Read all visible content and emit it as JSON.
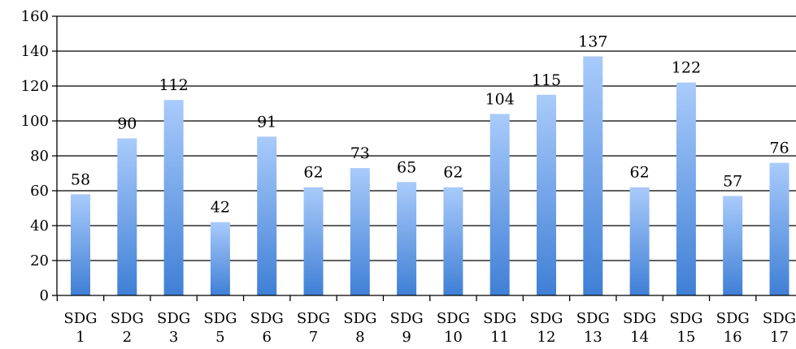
{
  "chart_data": {
    "type": "bar",
    "categories": [
      [
        "SDG",
        "1"
      ],
      [
        "SDG",
        "2"
      ],
      [
        "SDG",
        "3"
      ],
      [
        "SDG",
        "5"
      ],
      [
        "SDG",
        "6"
      ],
      [
        "SDG",
        "7"
      ],
      [
        "SDG",
        "8"
      ],
      [
        "SDG",
        "9"
      ],
      [
        "SDG",
        "10"
      ],
      [
        "SDG",
        "11"
      ],
      [
        "SDG",
        "12"
      ],
      [
        "SDG",
        "13"
      ],
      [
        "SDG",
        "14"
      ],
      [
        "SDG",
        "15"
      ],
      [
        "SDG",
        "16"
      ],
      [
        "SDG",
        "17"
      ]
    ],
    "values": [
      58,
      90,
      112,
      42,
      91,
      62,
      73,
      65,
      62,
      104,
      115,
      137,
      62,
      122,
      57,
      76
    ],
    "title": "",
    "xlabel": "",
    "ylabel": "",
    "ylim": [
      0,
      160
    ],
    "yticks": [
      "0",
      "20",
      "40",
      "60",
      "80",
      "100",
      "120",
      "140",
      "160"
    ],
    "grid": true,
    "legend": "none",
    "bar_color_top": "#a9cbfb",
    "bar_color_bottom": "#3f7fd6"
  }
}
